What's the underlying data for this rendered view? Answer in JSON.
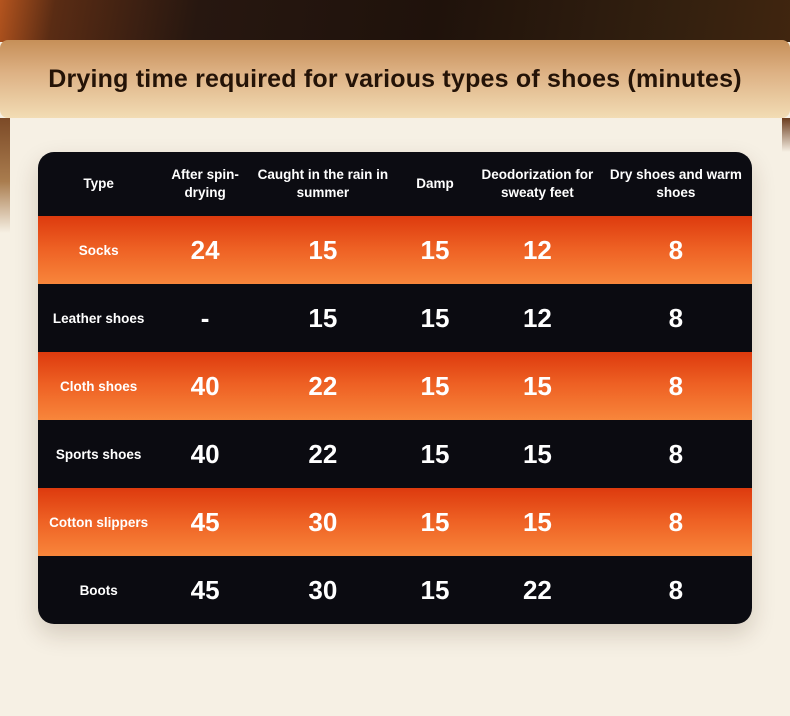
{
  "banner": {
    "title": "Drying time required for various types of shoes (minutes)"
  },
  "table": {
    "headers": [
      "Type",
      "After spin-drying",
      "Caught in the rain in summer",
      "Damp",
      "Deodorization for sweaty feet",
      "Dry shoes and warm shoes"
    ],
    "rows": [
      [
        "Socks",
        "24",
        "15",
        "15",
        "12",
        "8"
      ],
      [
        "Leather shoes",
        "-",
        "15",
        "15",
        "12",
        "8"
      ],
      [
        "Cloth shoes",
        "40",
        "22",
        "15",
        "15",
        "8"
      ],
      [
        "Sports shoes",
        "40",
        "22",
        "15",
        "15",
        "8"
      ],
      [
        "Cotton slippers",
        "45",
        "30",
        "15",
        "15",
        "8"
      ],
      [
        "Boots",
        "45",
        "30",
        "15",
        "22",
        "8"
      ]
    ]
  },
  "chart_data": {
    "type": "table",
    "title": "Drying time required for various types of shoes (minutes)",
    "units": "minutes",
    "columns": [
      "Type",
      "After spin-drying",
      "Caught in the rain in summer",
      "Damp",
      "Deodorization for sweaty feet",
      "Dry shoes and warm shoes"
    ],
    "rows": [
      {
        "type": "Socks",
        "after_spin_drying": 24,
        "caught_in_rain_in_summer": 15,
        "damp": 15,
        "deodorization_for_sweaty_feet": 12,
        "dry_shoes_and_warm_shoes": 8
      },
      {
        "type": "Leather shoes",
        "after_spin_drying": null,
        "caught_in_rain_in_summer": 15,
        "damp": 15,
        "deodorization_for_sweaty_feet": 12,
        "dry_shoes_and_warm_shoes": 8
      },
      {
        "type": "Cloth shoes",
        "after_spin_drying": 40,
        "caught_in_rain_in_summer": 22,
        "damp": 15,
        "deodorization_for_sweaty_feet": 15,
        "dry_shoes_and_warm_shoes": 8
      },
      {
        "type": "Sports shoes",
        "after_spin_drying": 40,
        "caught_in_rain_in_summer": 22,
        "damp": 15,
        "deodorization_for_sweaty_feet": 15,
        "dry_shoes_and_warm_shoes": 8
      },
      {
        "type": "Cotton slippers",
        "after_spin_drying": 45,
        "caught_in_rain_in_summer": 30,
        "damp": 15,
        "deodorization_for_sweaty_feet": 15,
        "dry_shoes_and_warm_shoes": 8
      },
      {
        "type": "Boots",
        "after_spin_drying": 45,
        "caught_in_rain_in_summer": 30,
        "damp": 15,
        "deodorization_for_sweaty_feet": 22,
        "dry_shoes_and_warm_shoes": 8
      }
    ]
  },
  "colors": {
    "background_cream": "#f6f0e4",
    "wood_brown": "#271710",
    "banner_gold_top": "#c68f58",
    "banner_gold_bottom": "#f2dcb4",
    "header_dark": "#0c0c12",
    "row_dark": "#0b0b11",
    "row_orange_top": "#dd3a0e",
    "row_orange_bottom": "#f8863b",
    "text_white": "#ffffff",
    "title_text": "#241307"
  }
}
